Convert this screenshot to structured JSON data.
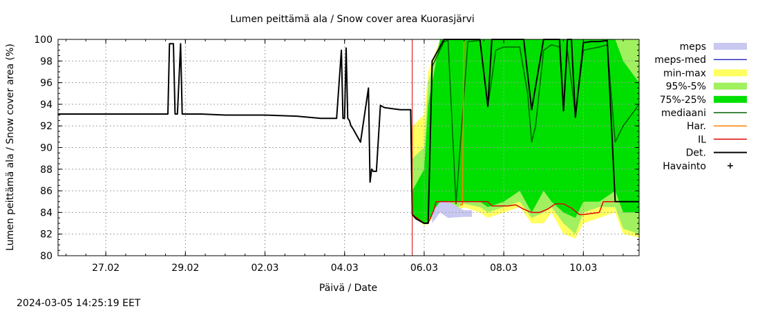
{
  "chart_data": {
    "type": "area",
    "title": "Lumen peittämä ala / Snow cover area Kuorasjärvi",
    "xlabel": "Päivä / Date",
    "ylabel": "Lumen peittämä ala / Snow cover area (%)",
    "ylim": [
      80,
      100
    ],
    "yticks": [
      80,
      82,
      84,
      86,
      88,
      90,
      92,
      94,
      96,
      98,
      100
    ],
    "xlim": [
      -0.6,
      6.7
    ],
    "xticks": [
      {
        "label": "27.02",
        "x": 0
      },
      {
        "label": "29.02",
        "x": 1
      },
      {
        "label": "02.03",
        "x": 2
      },
      {
        "label": "04.03",
        "x": 3
      },
      {
        "label": "06.03",
        "x": 4
      },
      {
        "label": "08.03",
        "x": 5
      },
      {
        "label": "10.03",
        "x": 6
      }
    ],
    "grid": true,
    "legend_position": "right",
    "forecast_start_x": 3.85,
    "timestamp": "2024-03-05 14:25:19 EET",
    "colors": {
      "meps": "#c8c8f0",
      "meps_med": "#3030c0",
      "minmax": "#ffff60",
      "p95_5": "#a0f060",
      "p75_25": "#00e000",
      "median": "#006000",
      "har": "#ff8000",
      "il": "#e00000",
      "det": "#000000",
      "observation": "#000000",
      "now_line": "#d00000"
    },
    "legend": [
      {
        "key": "meps",
        "label": "meps",
        "style": "box"
      },
      {
        "key": "meps_med",
        "label": "meps-med",
        "style": "line"
      },
      {
        "key": "minmax",
        "label": "min-max",
        "style": "box"
      },
      {
        "key": "p95_5",
        "label": "95%-5%",
        "style": "box"
      },
      {
        "key": "p75_25",
        "label": "75%-25%",
        "style": "box"
      },
      {
        "key": "median",
        "label": "mediaani",
        "style": "line"
      },
      {
        "key": "har",
        "label": "Har.",
        "style": "line"
      },
      {
        "key": "il",
        "label": "IL",
        "style": "line"
      },
      {
        "key": "det",
        "label": "Det.",
        "style": "line"
      },
      {
        "key": "observation",
        "label": "Havainto",
        "style": "plus"
      }
    ],
    "bands": {
      "minmax": {
        "x": [
          3.85,
          4.0,
          4.05,
          4.2,
          4.3,
          4.5,
          4.7,
          4.8,
          5.0,
          5.2,
          5.35,
          5.5,
          5.6,
          5.75,
          5.9,
          6.0,
          6.2,
          6.4,
          6.5,
          6.7
        ],
        "low": [
          83.8,
          82.8,
          83.0,
          84.2,
          83.5,
          84.5,
          84.0,
          83.5,
          84.0,
          84.5,
          83.0,
          83.0,
          84.0,
          82.0,
          81.6,
          83.0,
          83.5,
          84.0,
          82.0,
          81.7
        ],
        "high": [
          92.0,
          93.0,
          97.0,
          100,
          100,
          100,
          100,
          100,
          100,
          100,
          100,
          100,
          100,
          100,
          100,
          100,
          100,
          100,
          100,
          100
        ]
      },
      "p95_5": {
        "x": [
          3.85,
          4.0,
          4.05,
          4.2,
          4.3,
          4.5,
          4.7,
          4.8,
          5.0,
          5.2,
          5.35,
          5.5,
          5.6,
          5.75,
          5.9,
          6.0,
          6.2,
          6.4,
          6.5,
          6.7
        ],
        "low": [
          83.8,
          82.9,
          83.1,
          84.4,
          84.0,
          84.8,
          84.5,
          84.0,
          84.5,
          85.0,
          83.5,
          84.0,
          84.5,
          83.0,
          82.0,
          84.0,
          84.5,
          84.5,
          82.5,
          82.0
        ],
        "high": [
          89.0,
          90.0,
          96.0,
          100,
          100,
          100,
          100,
          100,
          100,
          100,
          100,
          100,
          100,
          100,
          100,
          100,
          100,
          100,
          100,
          100
        ]
      },
      "p75_25": {
        "x": [
          3.85,
          4.0,
          4.05,
          4.2,
          4.3,
          4.5,
          4.7,
          4.8,
          5.0,
          5.2,
          5.35,
          5.5,
          5.6,
          5.75,
          5.9,
          6.0,
          6.2,
          6.4,
          6.5,
          6.7
        ],
        "low": [
          83.8,
          83.0,
          83.3,
          84.8,
          85.0,
          85.0,
          85.0,
          84.5,
          85.0,
          86.0,
          84.0,
          86.0,
          85.0,
          84.0,
          83.5,
          85.0,
          85.0,
          86.0,
          84.0,
          84.0
        ],
        "high": [
          86.0,
          88.0,
          94.0,
          100,
          100,
          100,
          100,
          100,
          100,
          100,
          100,
          100,
          100,
          100,
          100,
          100,
          100,
          100,
          98.0,
          96.0
        ]
      },
      "meps": {
        "x": [
          4.1,
          4.2,
          4.3,
          4.5,
          4.6
        ],
        "low": [
          83.0,
          84.0,
          83.5,
          83.6,
          83.6
        ],
        "high": [
          84.0,
          85.0,
          85.0,
          84.2,
          84.2
        ]
      }
    },
    "series": [
      {
        "key": "det",
        "name": "Det.",
        "x": [
          -0.6,
          0.78,
          0.8,
          0.85,
          0.87,
          0.89,
          0.9,
          0.94,
          0.96,
          0.98,
          1.0,
          1.2,
          1.5,
          2.0,
          2.4,
          2.7,
          2.9,
          2.96,
          2.98,
          3.0,
          3.02,
          3.04,
          3.06,
          3.08,
          3.1,
          3.2,
          3.3,
          3.32,
          3.34,
          3.36,
          3.4,
          3.45,
          3.5,
          3.6,
          3.7,
          3.83,
          3.85,
          3.9,
          4.0,
          4.05,
          4.1,
          4.25,
          4.3,
          4.4,
          4.55,
          4.7,
          4.8,
          4.85,
          5.0,
          5.15,
          5.25,
          5.35,
          5.5,
          5.6,
          5.7,
          5.75,
          5.8,
          5.85,
          5.9,
          6.0,
          6.1,
          6.2,
          6.3,
          6.35,
          6.4,
          6.5,
          6.7
        ],
        "y": [
          93.1,
          93.1,
          99.6,
          99.6,
          93.1,
          93.1,
          93.1,
          99.6,
          93.1,
          93.1,
          93.1,
          93.1,
          93.0,
          93.0,
          92.9,
          92.7,
          92.7,
          99.0,
          92.7,
          92.7,
          99.2,
          92.7,
          92.5,
          92.0,
          91.8,
          90.5,
          95.5,
          86.8,
          88.0,
          87.8,
          87.8,
          93.9,
          93.7,
          93.6,
          93.5,
          93.5,
          83.8,
          83.4,
          83.0,
          83.0,
          98.0,
          100,
          100,
          100,
          100,
          100,
          93.8,
          100,
          100,
          100,
          100,
          93.5,
          100,
          100,
          100,
          93.4,
          100,
          100,
          92.8,
          99.7,
          99.8,
          99.8,
          99.9,
          92.5,
          85.0,
          85.0,
          85.0
        ]
      },
      {
        "key": "median",
        "name": "mediaani",
        "x": [
          3.85,
          4.0,
          4.05,
          4.1,
          4.25,
          4.3,
          4.4,
          4.55,
          4.7,
          4.8,
          4.9,
          5.0,
          5.1,
          5.2,
          5.3,
          5.35,
          5.4,
          5.5,
          5.6,
          5.7,
          5.75,
          5.8,
          5.85,
          5.9,
          6.0,
          6.2,
          6.3,
          6.4,
          6.5,
          6.7
        ],
        "y": [
          83.8,
          83.0,
          83.1,
          97.5,
          99.8,
          99.9,
          84.8,
          99.8,
          99.9,
          93.8,
          99.0,
          99.3,
          99.3,
          99.3,
          95.0,
          90.5,
          92.0,
          99.0,
          99.5,
          99.3,
          93.5,
          99.0,
          96.0,
          93.0,
          99.0,
          99.3,
          99.5,
          90.5,
          92.0,
          94.0
        ]
      },
      {
        "key": "har",
        "name": "Har.",
        "x": [
          4.45,
          4.48,
          4.5,
          4.52
        ],
        "y": [
          84.7,
          84.7,
          100,
          100
        ]
      },
      {
        "key": "il",
        "name": "IL",
        "x": [
          3.85,
          4.0,
          4.05,
          4.12,
          4.15,
          4.5,
          4.8,
          4.85,
          5.05,
          5.15,
          5.25,
          5.35,
          5.45,
          5.55,
          5.65,
          5.75,
          5.85,
          5.95,
          6.0,
          6.2,
          6.25,
          6.7
        ],
        "y": [
          83.8,
          83.0,
          83.0,
          84.2,
          85.0,
          85.0,
          85.0,
          84.6,
          84.6,
          84.7,
          84.3,
          84.0,
          84.0,
          84.3,
          84.8,
          84.8,
          84.4,
          83.8,
          83.8,
          84.0,
          85.0,
          85.0
        ]
      }
    ]
  }
}
